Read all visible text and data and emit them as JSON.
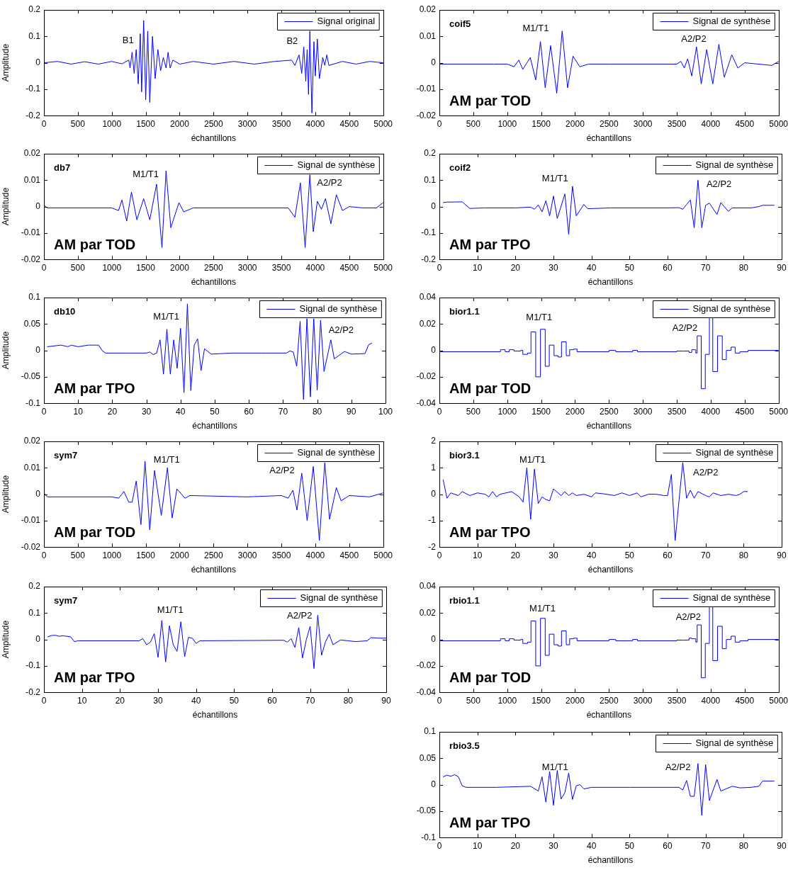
{
  "chart_data": [
    {
      "type": "line",
      "ylabel": "Amplitude",
      "xlabel": "échantillons",
      "legend": "top right",
      "xlim": [
        0,
        5000
      ],
      "ylim": [
        -0.2,
        0.2
      ],
      "xticks": [
        0,
        500,
        1000,
        1500,
        2000,
        2500,
        3000,
        3500,
        4000,
        4500,
        5000
      ],
      "yticks": [
        -0.2,
        -0.1,
        0,
        0.1,
        0.2
      ],
      "annotations": [
        "B1",
        "B2"
      ],
      "series": [
        {
          "name": "Signal original",
          "color": "#0000ff",
          "x": [
            0,
            200,
            400,
            600,
            800,
            1000,
            1150,
            1250,
            1270,
            1300,
            1330,
            1360,
            1390,
            1420,
            1440,
            1470,
            1500,
            1530,
            1560,
            1600,
            1640,
            1680,
            1720,
            1760,
            1800,
            1830,
            1860,
            1900,
            2000,
            2200,
            2500,
            2800,
            3100,
            3400,
            3650,
            3700,
            3760,
            3800,
            3830,
            3860,
            3880,
            3900,
            3920,
            3950,
            3980,
            4000,
            4030,
            4060,
            4080,
            4110,
            4140,
            4170,
            4200,
            4400,
            4600,
            4800,
            5000
          ],
          "values": [
            0,
            0.005,
            -0.005,
            0.004,
            -0.005,
            0.005,
            -0.004,
            0.01,
            -0.02,
            0.04,
            -0.04,
            0.05,
            -0.08,
            0.11,
            -0.11,
            0.16,
            -0.14,
            0.12,
            -0.15,
            0.1,
            -0.06,
            0.05,
            -0.03,
            0.02,
            -0.02,
            0.04,
            -0.02,
            0.01,
            -0.005,
            0.005,
            -0.005,
            0.005,
            -0.005,
            0.005,
            0.01,
            -0.01,
            0.03,
            -0.04,
            0.06,
            -0.07,
            0.05,
            -0.12,
            0.12,
            -0.19,
            0.08,
            -0.05,
            0.09,
            -0.06,
            -0.03,
            0.02,
            -0.01,
            0.03,
            -0.01,
            0.005,
            -0.005,
            0.005,
            0
          ]
        }
      ]
    },
    {
      "type": "line",
      "title": "coif5",
      "subtitle": "AM par TOD",
      "xlabel": "échantillons",
      "legend": "top right",
      "xlim": [
        0,
        5000
      ],
      "ylim": [
        -0.02,
        0.02
      ],
      "xticks": [
        0,
        500,
        1000,
        1500,
        2000,
        2500,
        3000,
        3500,
        4000,
        4500,
        5000
      ],
      "yticks": [
        -0.02,
        -0.01,
        0,
        0.01,
        0.02
      ],
      "annotations": [
        "M1/T1",
        "A2/P2"
      ],
      "series": [
        {
          "name": "Signal de synthèse",
          "color": "#0000ff",
          "x": [
            0,
            800,
            1000,
            1100,
            1170,
            1230,
            1340,
            1420,
            1490,
            1560,
            1640,
            1730,
            1810,
            1890,
            1970,
            2070,
            2200,
            2500,
            3000,
            3500,
            3560,
            3610,
            3660,
            3720,
            3790,
            3860,
            3940,
            4030,
            4120,
            4200,
            4310,
            4400,
            4500,
            4700,
            4900,
            5000
          ],
          "values": [
            -0.0005,
            -0.0005,
            -0.0005,
            -0.0015,
            0.001,
            -0.0025,
            0.002,
            -0.0065,
            0.008,
            -0.0095,
            0.0065,
            -0.0115,
            0.012,
            -0.0095,
            0.0025,
            -0.0015,
            -0.0005,
            -0.0005,
            -0.0005,
            -0.0005,
            0.0005,
            -0.002,
            0.0015,
            -0.005,
            0.006,
            -0.008,
            0.005,
            -0.008,
            0.007,
            -0.0055,
            0.003,
            -0.002,
            0,
            -0.0005,
            -0.001,
            0.0005
          ]
        }
      ]
    },
    {
      "type": "line",
      "title": "db7",
      "subtitle": "AM par TOD",
      "ylabel": "Amplitude",
      "xlabel": "échantillons",
      "legend": "top right",
      "xlim": [
        0,
        5000
      ],
      "ylim": [
        -0.02,
        0.02
      ],
      "xticks": [
        0,
        500,
        1000,
        1500,
        2000,
        2500,
        3000,
        3500,
        4000,
        4500,
        5000
      ],
      "yticks": [
        -0.02,
        -0.01,
        0,
        0.01,
        0.02
      ],
      "annotations": [
        "M1/T1",
        "A2/P2"
      ],
      "series": [
        {
          "name": "Signal de synthèse",
          "color": "#0000ff",
          "x": [
            0,
            50,
            1000,
            1100,
            1150,
            1220,
            1290,
            1370,
            1470,
            1560,
            1660,
            1740,
            1800,
            1870,
            1990,
            2060,
            2200,
            3000,
            3600,
            3700,
            3780,
            3850,
            3920,
            3970,
            4030,
            4090,
            4150,
            4230,
            4310,
            4400,
            4500,
            4700,
            4900,
            5000
          ],
          "values": [
            0.0005,
            -0.0005,
            -0.0005,
            -0.0015,
            0.0025,
            -0.0055,
            0.0055,
            -0.005,
            0.003,
            -0.005,
            0.0085,
            -0.0155,
            0.0135,
            -0.008,
            0.0015,
            -0.002,
            -0.0005,
            -0.0005,
            -0.0005,
            -0.004,
            0.009,
            -0.0155,
            0.012,
            -0.0095,
            0.002,
            -0.001,
            0.003,
            -0.0065,
            0.0045,
            -0.0015,
            0,
            -0.0005,
            -0.0005,
            0.0015
          ]
        }
      ]
    },
    {
      "type": "line",
      "title": "coif2",
      "subtitle": "AM par TPO",
      "xlabel": "échantillons",
      "legend": "top right",
      "xlim": [
        0,
        90
      ],
      "ylim": [
        -0.2,
        0.2
      ],
      "xticks": [
        0,
        10,
        20,
        30,
        40,
        50,
        60,
        70,
        80,
        90
      ],
      "yticks": [
        -0.2,
        -0.1,
        0,
        0.1,
        0.2
      ],
      "annotations": [
        "M1/T1",
        "A2/P2"
      ],
      "series": [
        {
          "name": "Signal de synthèse",
          "color": "#0000ff",
          "x": [
            1,
            2,
            6,
            8,
            12,
            20,
            24,
            25,
            26,
            27,
            28,
            29,
            30,
            31,
            33,
            34,
            35,
            36,
            38,
            39,
            45,
            55,
            60,
            63,
            64,
            65,
            66,
            67,
            68,
            69,
            70,
            71,
            73,
            74,
            76,
            77,
            82,
            84,
            85,
            88
          ],
          "values": [
            0.015,
            0.017,
            0.018,
            -0.007,
            -0.005,
            -0.005,
            -0.002,
            -0.01,
            0.006,
            -0.02,
            0.022,
            -0.035,
            0.04,
            -0.045,
            0.048,
            -0.105,
            0.077,
            -0.035,
            0.008,
            -0.008,
            -0.005,
            -0.005,
            -0.005,
            -0.004,
            -0.01,
            0.008,
            0.025,
            -0.08,
            0.1,
            -0.08,
            0.005,
            0.013,
            -0.03,
            0.015,
            -0.018,
            -0.005,
            -0.005,
            0,
            0.005,
            0.005
          ]
        }
      ]
    },
    {
      "type": "line",
      "title": "db10",
      "subtitle": "AM par TPO",
      "ylabel": "Amplitude",
      "xlabel": "échantillons",
      "legend": "top right",
      "xlim": [
        0,
        100
      ],
      "ylim": [
        -0.1,
        0.1
      ],
      "xticks": [
        0,
        10,
        20,
        30,
        40,
        50,
        60,
        70,
        80,
        90,
        100
      ],
      "yticks": [
        -0.1,
        -0.05,
        0,
        0.05,
        0.1
      ],
      "annotations": [
        "M1/T1",
        "A2/P2"
      ],
      "series": [
        {
          "name": "Signal de synthèse",
          "color": "#0000ff",
          "x": [
            1,
            5,
            7,
            8,
            10,
            13,
            16,
            17,
            18,
            25,
            30,
            31,
            32,
            33,
            34,
            35,
            36,
            37,
            38,
            39,
            40,
            41,
            42,
            43,
            44,
            45,
            46,
            47,
            49,
            55,
            65,
            71,
            72,
            73,
            74,
            75,
            76,
            77,
            78,
            79,
            80,
            81,
            82,
            84,
            85,
            88,
            90,
            94,
            95,
            96
          ],
          "values": [
            0.007,
            0.01,
            0.007,
            0.01,
            0.007,
            0.01,
            0.01,
            0,
            -0.005,
            -0.005,
            -0.005,
            -0.003,
            -0.008,
            -0.005,
            0.02,
            -0.045,
            0.04,
            -0.045,
            0.02,
            -0.034,
            0.042,
            -0.08,
            0.088,
            -0.076,
            0.01,
            0.022,
            -0.038,
            0.003,
            -0.007,
            -0.005,
            -0.005,
            -0.005,
            -0.001,
            -0.003,
            -0.03,
            0.055,
            -0.093,
            0.06,
            -0.088,
            0.06,
            -0.075,
            0.057,
            -0.04,
            0.02,
            -0.016,
            -0.002,
            -0.007,
            -0.006,
            0.01,
            0.014
          ]
        }
      ]
    },
    {
      "type": "step",
      "title": "bior1.1",
      "subtitle": "AM par TOD",
      "xlabel": "échantillons",
      "legend": "top right",
      "xlim": [
        0,
        5000
      ],
      "ylim": [
        -0.04,
        0.04
      ],
      "xticks": [
        0,
        500,
        1000,
        1500,
        2000,
        2500,
        3000,
        3500,
        4000,
        4500,
        5000
      ],
      "yticks": [
        -0.04,
        -0.02,
        0,
        0.02,
        0.04
      ],
      "annotations": [
        "M1/T1",
        "A2/P2"
      ],
      "series": [
        {
          "name": "Signal de synthèse",
          "color": "#0000ff",
          "x": [
            0,
            900,
            970,
            1030,
            1100,
            1200,
            1230,
            1300,
            1350,
            1420,
            1490,
            1560,
            1620,
            1690,
            1750,
            1800,
            1870,
            1920,
            1980,
            2030,
            2500,
            2600,
            2850,
            2920,
            3500,
            3600,
            3680,
            3720,
            3780,
            3800,
            3860,
            3920,
            3980,
            4030,
            4100,
            4170,
            4230,
            4300,
            4360,
            4430,
            4550,
            5000
          ],
          "values": [
            -0.001,
            0.0005,
            -0.001,
            0.0005,
            -0.0005,
            0,
            -0.003,
            -0.002,
            0.014,
            -0.02,
            0.016,
            -0.012,
            0.004,
            -0.004,
            -0.005,
            0.0065,
            -0.004,
            0.0005,
            0.001,
            -0.001,
            0,
            -0.001,
            0,
            -0.001,
            -0.0005,
            -0.0005,
            -0.0015,
            0.0005,
            -0.002,
            0.011,
            -0.029,
            -0.003,
            0.025,
            -0.016,
            0.011,
            -0.007,
            0,
            0.0025,
            -0.002,
            -0.001,
            0,
            -0.0005
          ]
        }
      ]
    },
    {
      "type": "line",
      "title": "sym7",
      "subtitle": "AM par TOD",
      "ylabel": "Amplitude",
      "xlabel": "échantillons",
      "legend": "top right",
      "xlim": [
        0,
        5000
      ],
      "ylim": [
        -0.02,
        0.02
      ],
      "xticks": [
        0,
        500,
        1000,
        1500,
        2000,
        2500,
        3000,
        3500,
        4000,
        4500,
        5000
      ],
      "yticks": [
        -0.02,
        -0.01,
        0,
        0.01,
        0.02
      ],
      "annotations": [
        "M1/T1",
        "A2/P2"
      ],
      "series": [
        {
          "name": "Signal de synthèse",
          "color": "#0000ff",
          "x": [
            0,
            50,
            1000,
            1100,
            1180,
            1250,
            1300,
            1360,
            1430,
            1490,
            1560,
            1630,
            1730,
            1820,
            1890,
            1960,
            2080,
            2150,
            3000,
            3500,
            3600,
            3670,
            3730,
            3800,
            3880,
            3970,
            4060,
            4140,
            4210,
            4310,
            4380,
            4500,
            4800,
            5000
          ],
          "values": [
            0.0005,
            -0.001,
            -0.001,
            -0.0015,
            0.001,
            -0.003,
            -0.003,
            0.005,
            -0.0115,
            0.0125,
            -0.0135,
            0.009,
            -0.008,
            0.01,
            -0.009,
            0.002,
            -0.0015,
            -0.0005,
            -0.001,
            -0.0005,
            -0.0015,
            0.0015,
            -0.006,
            0.008,
            -0.01,
            0.0105,
            -0.0175,
            0.012,
            -0.0095,
            0.0025,
            -0.0025,
            -0.0005,
            -0.001,
            0.0005
          ]
        }
      ]
    },
    {
      "type": "line",
      "title": "bior3.1",
      "subtitle": "AM par TPO",
      "xlabel": "échantillons",
      "legend": "top right",
      "xlim": [
        0,
        90
      ],
      "ylim": [
        -2,
        2
      ],
      "xticks": [
        0,
        10,
        20,
        30,
        40,
        50,
        60,
        70,
        80,
        90
      ],
      "yticks": [
        -2,
        -1,
        0,
        1,
        2
      ],
      "annotations": [
        "M1/T1",
        "A2/P2"
      ],
      "series": [
        {
          "name": "Signal de synthèse",
          "color": "#0000ff",
          "x": [
            1,
            2,
            3,
            5,
            6,
            8,
            10,
            12,
            13,
            14,
            15,
            16,
            19,
            21,
            22,
            23,
            24,
            25,
            26,
            27,
            28,
            29,
            30,
            32,
            33,
            34,
            35,
            36,
            38,
            40,
            41,
            44,
            46,
            48,
            50,
            52,
            53,
            55,
            57,
            59,
            60,
            61,
            62,
            63,
            64,
            65,
            66,
            67,
            68,
            70,
            71,
            72,
            74,
            76,
            78,
            79,
            80,
            81
          ],
          "values": [
            0.55,
            -0.15,
            0.05,
            -0.05,
            0.1,
            -0.05,
            0.05,
            0,
            -0.1,
            0.1,
            -0.1,
            0,
            0.1,
            -0.1,
            -0.3,
            1,
            -0.95,
            0.95,
            -0.35,
            -0.1,
            -0.2,
            -0.25,
            0.2,
            -0.05,
            0.1,
            -0.05,
            0.05,
            -0.05,
            0,
            -0.1,
            0.05,
            0,
            -0.05,
            0.05,
            -0.05,
            0.05,
            -0.1,
            0,
            0,
            -0.05,
            -0.05,
            0.75,
            -1.75,
            -0.25,
            1.2,
            -0.15,
            0.15,
            -0.15,
            0.1,
            -0.05,
            -0.1,
            0.05,
            -0.05,
            0,
            -0.05,
            0,
            0.1,
            0.1
          ]
        }
      ]
    },
    {
      "type": "line",
      "title": "sym7",
      "subtitle": "AM par TPO",
      "ylabel": "Amplitude",
      "xlabel": "échantillons",
      "legend": "top right",
      "xlim": [
        0,
        90
      ],
      "ylim": [
        -0.2,
        0.2
      ],
      "xticks": [
        0,
        10,
        20,
        30,
        40,
        50,
        60,
        70,
        80,
        90
      ],
      "yticks": [
        -0.2,
        -0.1,
        0,
        0.1,
        0.2
      ],
      "annotations": [
        "M1/T1",
        "A2/P2"
      ],
      "series": [
        {
          "name": "Signal de synthèse",
          "color": "#0000ff",
          "x": [
            1,
            2,
            3,
            4,
            5,
            7,
            8,
            9,
            25,
            26,
            27,
            28,
            29,
            30,
            31,
            32,
            33,
            34,
            35,
            36,
            37,
            38,
            39,
            40,
            41,
            63,
            64,
            65,
            66,
            67,
            68,
            69,
            70,
            71,
            72,
            73,
            74,
            75,
            76,
            78,
            80,
            82,
            85,
            86,
            88,
            90
          ],
          "values": [
            0.01,
            0.015,
            0.016,
            0.012,
            0.014,
            0.01,
            -0.008,
            -0.005,
            -0.005,
            0.003,
            -0.02,
            -0.01,
            0.022,
            -0.068,
            0.072,
            -0.085,
            0.052,
            -0.02,
            -0.045,
            0.067,
            -0.065,
            0.008,
            0.005,
            -0.015,
            -0.005,
            -0.003,
            -0.01,
            0.003,
            -0.03,
            0.045,
            -0.07,
            0,
            0.05,
            -0.11,
            0.092,
            -0.06,
            -0.01,
            0.02,
            -0.02,
            -0.002,
            -0.005,
            -0.008,
            -0.005,
            0.007,
            0.005,
            0.005
          ]
        }
      ]
    },
    {
      "type": "step",
      "title": "rbio1.1",
      "subtitle": "AM par TOD",
      "xlabel": "échantillons",
      "legend": "top right",
      "xlim": [
        0,
        5000
      ],
      "ylim": [
        -0.04,
        0.04
      ],
      "xticks": [
        0,
        500,
        1000,
        1500,
        2000,
        2500,
        3000,
        3500,
        4000,
        4500,
        5000
      ],
      "yticks": [
        -0.04,
        -0.02,
        0,
        0.02,
        0.04
      ],
      "annotations": [
        "M1/T1",
        "A2/P2"
      ],
      "series": [
        {
          "name": "Signal de synthèse",
          "color": "#0000ff",
          "x": [
            0,
            900,
            970,
            1030,
            1100,
            1200,
            1230,
            1300,
            1350,
            1420,
            1490,
            1560,
            1620,
            1690,
            1750,
            1800,
            1870,
            1920,
            1980,
            2030,
            2500,
            2600,
            2850,
            2920,
            3500,
            3600,
            3680,
            3720,
            3780,
            3800,
            3860,
            3920,
            3980,
            4030,
            4100,
            4170,
            4230,
            4300,
            4360,
            4430,
            4550,
            5000
          ],
          "values": [
            -0.001,
            0.0005,
            -0.001,
            0.0005,
            -0.0005,
            0,
            -0.003,
            -0.002,
            0.014,
            -0.02,
            0.016,
            -0.012,
            0.004,
            -0.004,
            -0.005,
            0.0065,
            -0.004,
            0.0005,
            0.001,
            -0.001,
            0,
            -0.001,
            0,
            -0.001,
            -0.0005,
            -0.0005,
            0.001,
            0.0005,
            -0.002,
            0.011,
            -0.029,
            -0.003,
            0.025,
            -0.016,
            0.01,
            -0.007,
            0,
            0.0025,
            -0.002,
            -0.001,
            0,
            -0.0005
          ]
        }
      ]
    },
    {
      "type": "line",
      "title": "rbio3.5",
      "subtitle": "AM par TPO",
      "xlabel": "échantillons",
      "legend": "top right",
      "xlim": [
        0,
        90
      ],
      "ylim": [
        -0.1,
        0.1
      ],
      "xticks": [
        0,
        10,
        20,
        30,
        40,
        50,
        60,
        70,
        80,
        90
      ],
      "yticks": [
        -0.1,
        -0.05,
        0,
        0.05,
        0.1
      ],
      "annotations": [
        "M1/T1",
        "A2/P2"
      ],
      "series": [
        {
          "name": "Signal de synthèse",
          "color": "#0000ff",
          "x": [
            1,
            2,
            3,
            4,
            5,
            6,
            7,
            15,
            24,
            26,
            27,
            28,
            29,
            30,
            31,
            32,
            33,
            34,
            35,
            36,
            37,
            38,
            40,
            50,
            60,
            63,
            64,
            65,
            66,
            67,
            68,
            69,
            70,
            71,
            73,
            74,
            77,
            79,
            82,
            84,
            85,
            88
          ],
          "values": [
            0.015,
            0.018,
            0.016,
            0.019,
            0.015,
            -0.002,
            -0.005,
            -0.005,
            -0.003,
            -0.012,
            0.015,
            -0.033,
            0.025,
            -0.039,
            0.027,
            -0.027,
            -0.015,
            0.022,
            -0.028,
            -0.002,
            0,
            -0.008,
            -0.005,
            -0.005,
            -0.005,
            -0.005,
            -0.01,
            0.008,
            -0.022,
            -0.022,
            0.04,
            -0.058,
            0.038,
            -0.03,
            0.01,
            -0.012,
            -0.003,
            -0.006,
            -0.005,
            -0.003,
            0.007,
            0.007
          ]
        }
      ]
    }
  ]
}
